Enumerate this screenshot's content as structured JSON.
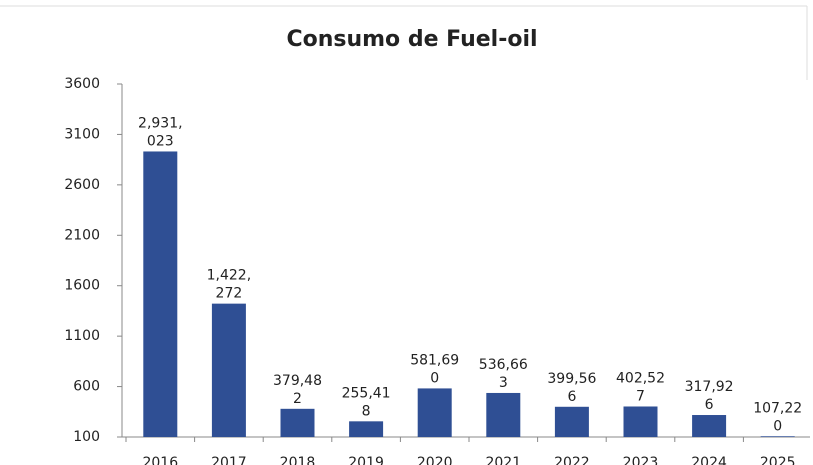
{
  "chart_data": {
    "type": "bar",
    "title": "Consumo de Fuel-oil",
    "categories": [
      "2016",
      "2017",
      "2018",
      "2019",
      "2020",
      "2021",
      "2022",
      "2023",
      "2024",
      "2025"
    ],
    "values": [
      2931.023,
      1422.272,
      379.482,
      255.418,
      581.69,
      536.663,
      399.566,
      402.527,
      317.926,
      107.22
    ],
    "value_labels": [
      "2,931,023",
      "1,422,272",
      "379,482",
      "255,418",
      "581,690",
      "536,663",
      "399,566",
      "402,527",
      "317,926",
      "107,220"
    ],
    "color": "#2f4f94",
    "ylim": [
      100,
      3600
    ],
    "yticks": [
      100,
      600,
      1100,
      1600,
      2100,
      2600,
      3100,
      3600
    ],
    "grid": false
  }
}
